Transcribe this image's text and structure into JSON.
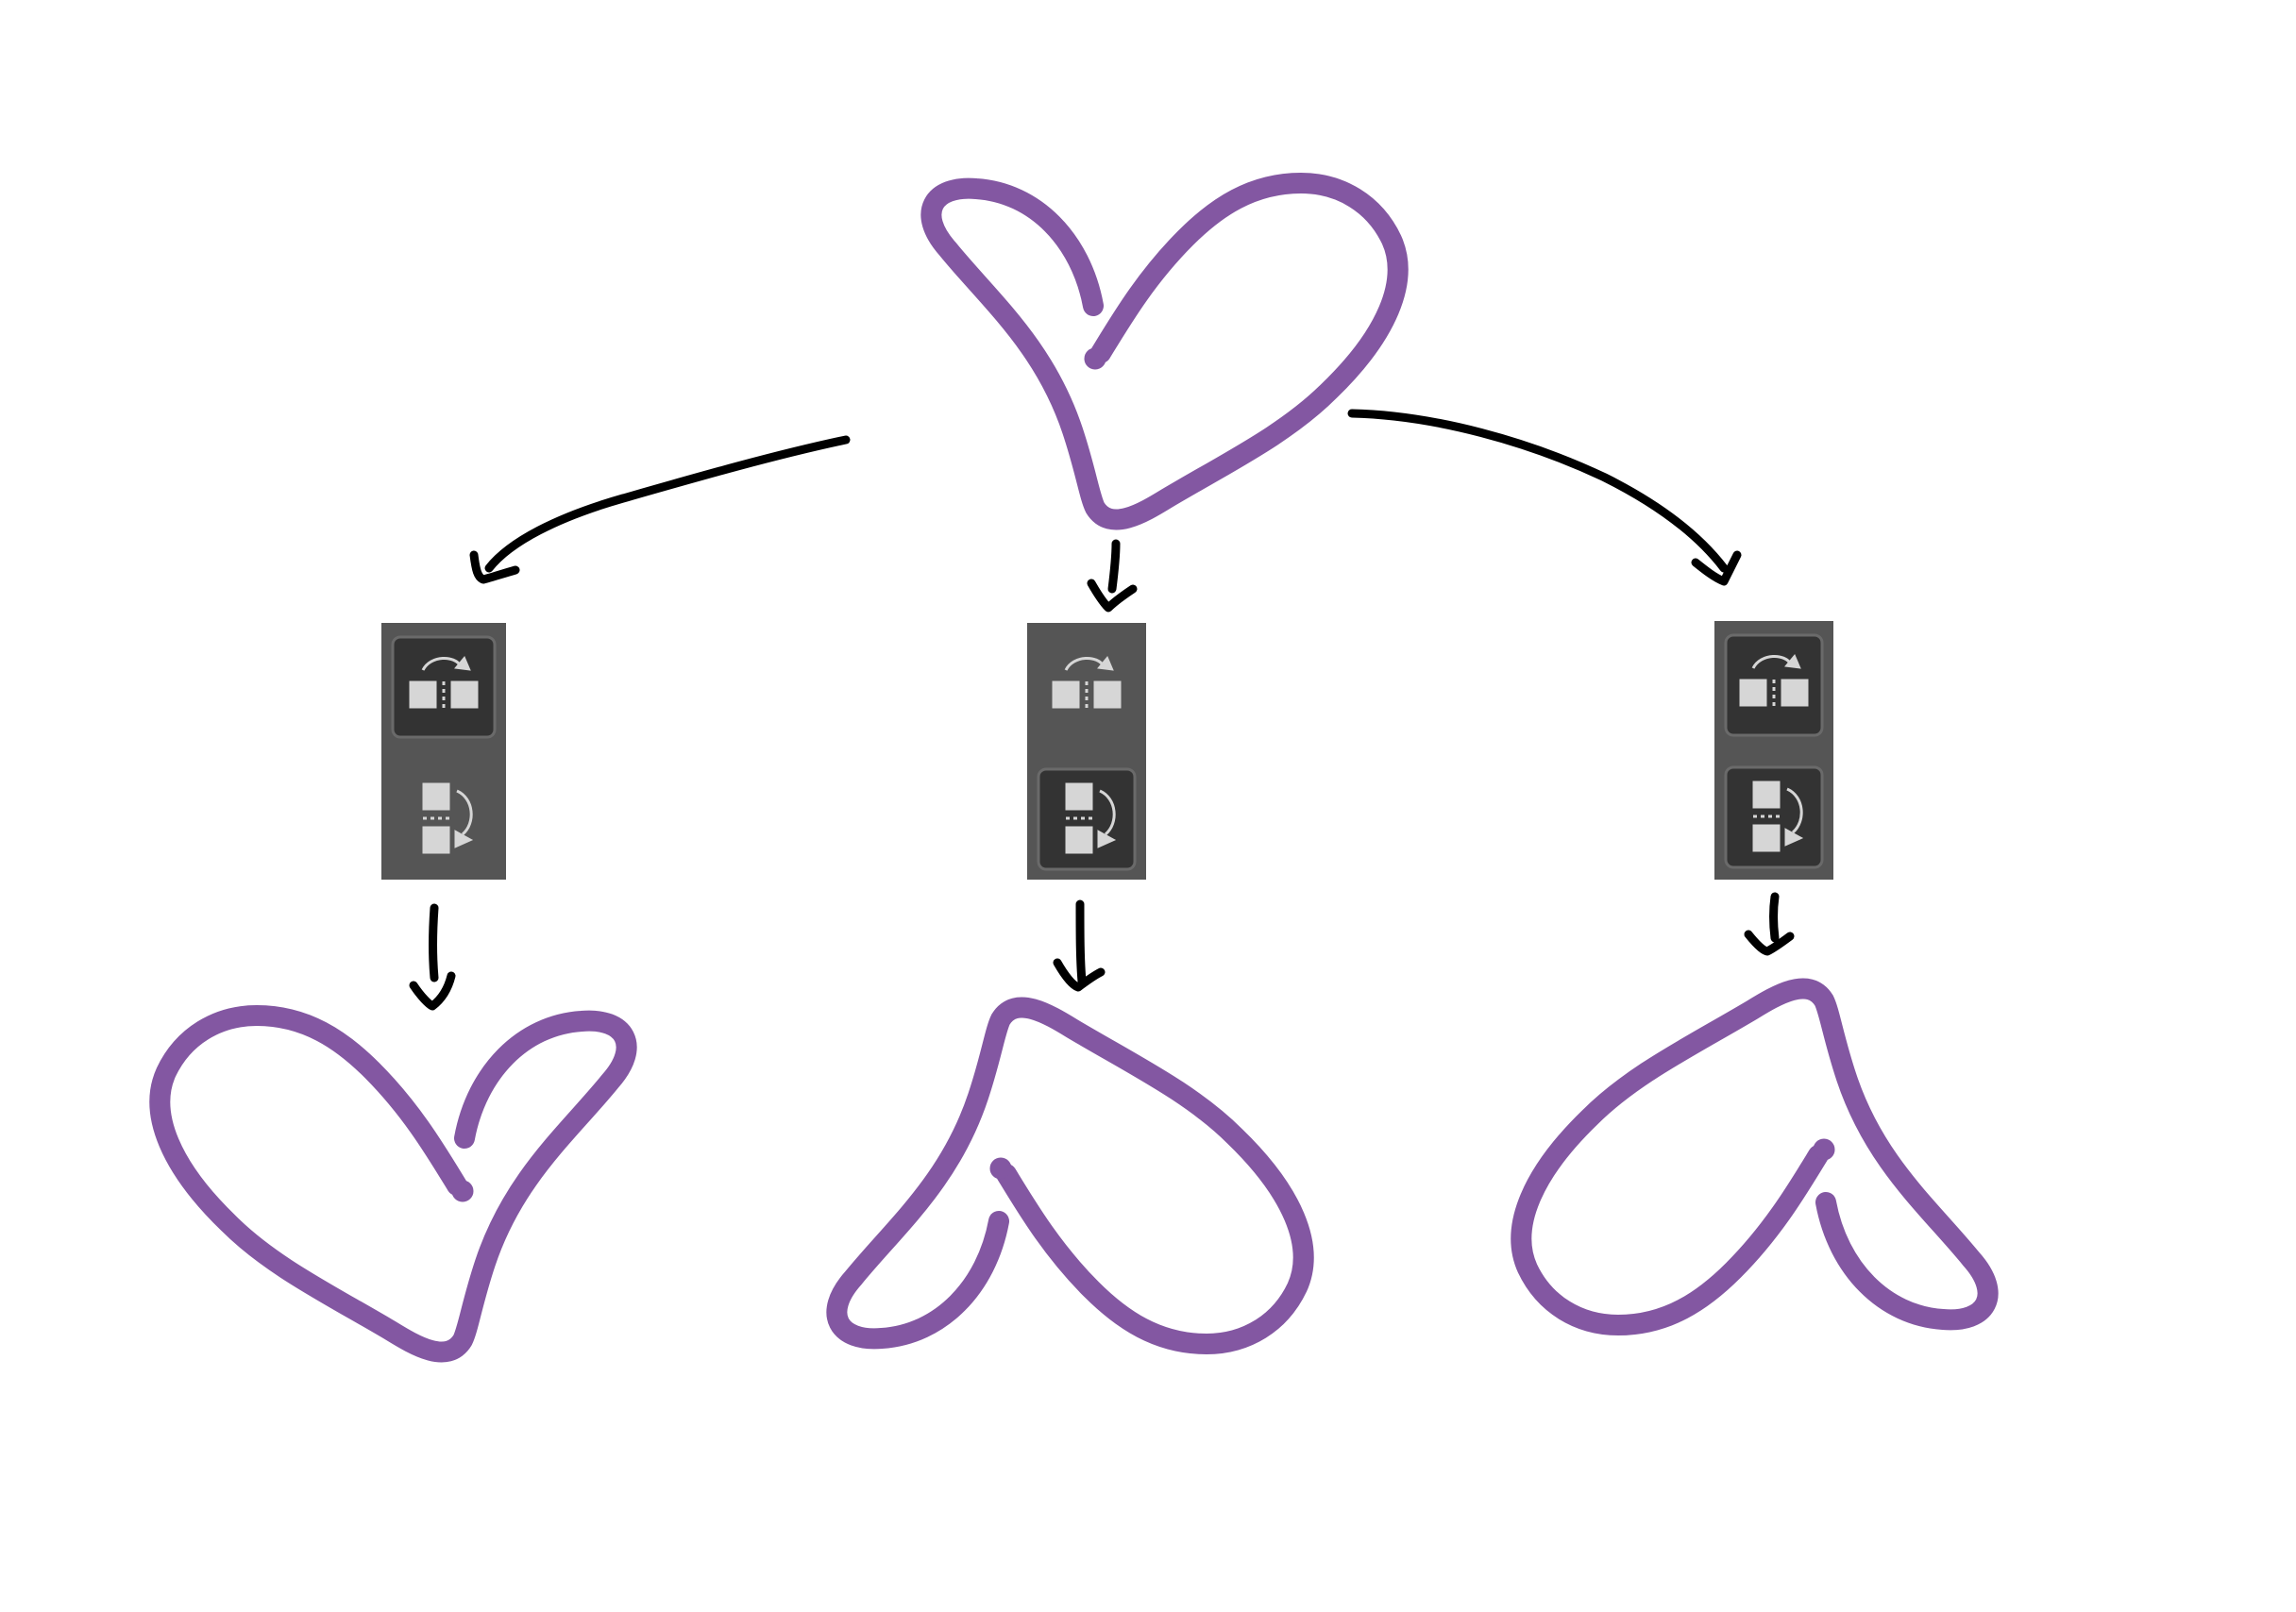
{
  "colors": {
    "background": "#ffffff",
    "heart_stroke": "#8357a2",
    "arrow_stroke": "#000000",
    "panel_background": "#555555",
    "button_active": "#333333",
    "button_border": "#6a6a6a",
    "glyph": "#d6d6d6"
  },
  "original": {
    "shape": "heart-doodle",
    "orientation": "original"
  },
  "transforms": [
    {
      "id": "flip-horizontal",
      "shape": "heart-doodle",
      "panel_buttons": [
        {
          "icon": "flip-horizontal-icon",
          "active": true
        },
        {
          "icon": "flip-vertical-icon",
          "active": false
        }
      ]
    },
    {
      "id": "flip-vertical",
      "shape": "heart-doodle",
      "panel_buttons": [
        {
          "icon": "flip-horizontal-icon",
          "active": false
        },
        {
          "icon": "flip-vertical-icon",
          "active": true
        }
      ]
    },
    {
      "id": "flip-both",
      "shape": "heart-doodle",
      "panel_buttons": [
        {
          "icon": "flip-horizontal-icon",
          "active": true
        },
        {
          "icon": "flip-vertical-icon",
          "active": true
        }
      ]
    }
  ]
}
